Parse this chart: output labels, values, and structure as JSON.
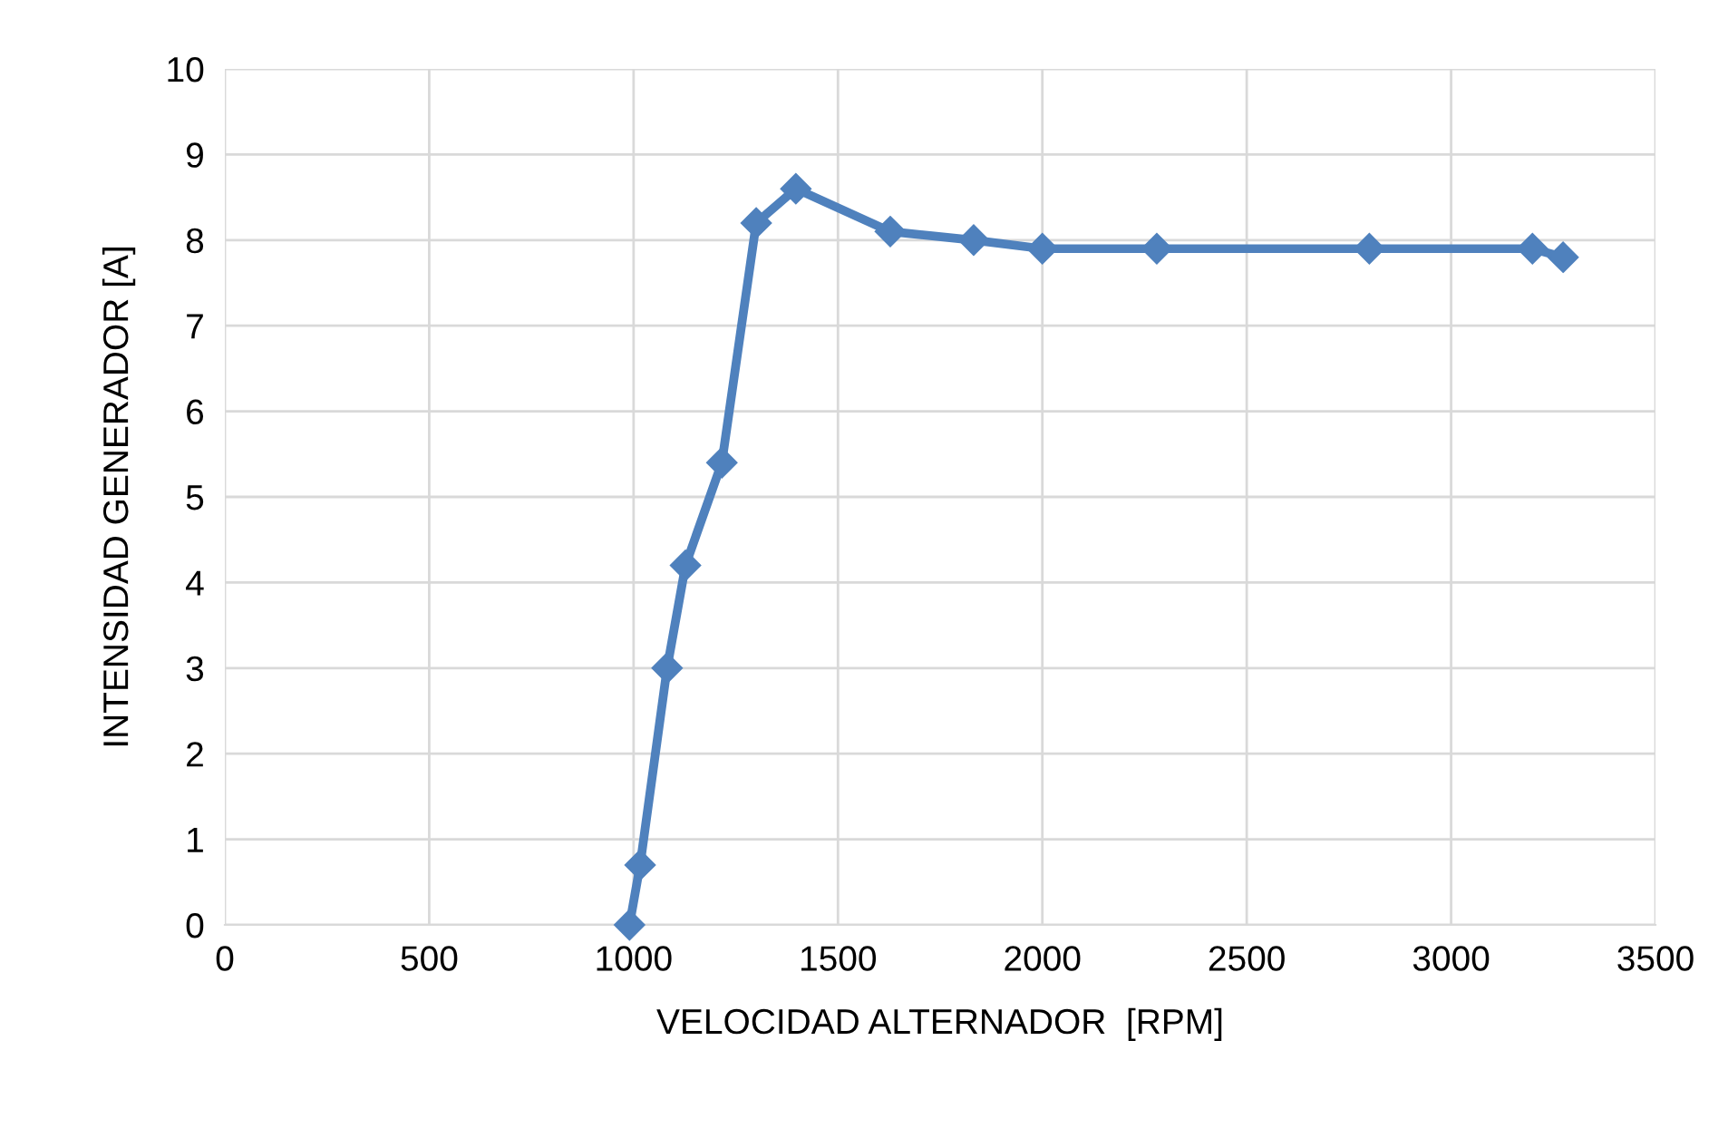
{
  "chart_data": {
    "type": "line",
    "xlabel": "VELOCIDAD ALTERNADOR  [RPM]",
    "ylabel": "INTENSIDAD GENERADOR [A]",
    "x": [
      990,
      1016,
      1082,
      1127,
      1216,
      1300,
      1397,
      1628,
      1832,
      2000,
      2280,
      2800,
      3199,
      3274
    ],
    "series": [
      {
        "color": "#4f81bd",
        "values": [
          0,
          0.7,
          3,
          4.2,
          5.4,
          8.2,
          8.6,
          8.1,
          8.0,
          7.9,
          7.9,
          7.9,
          7.9,
          7.8
        ]
      }
    ],
    "xlim": [
      0,
      3500
    ],
    "xticks": [
      0,
      500,
      1000,
      1500,
      2000,
      2500,
      3000,
      3500
    ],
    "ylim": [
      0,
      10
    ],
    "yticks": [
      0,
      1,
      2,
      3,
      4,
      5,
      6,
      7,
      8,
      9,
      10
    ],
    "grid": true,
    "marker": "diamond",
    "line_style": "solid"
  }
}
